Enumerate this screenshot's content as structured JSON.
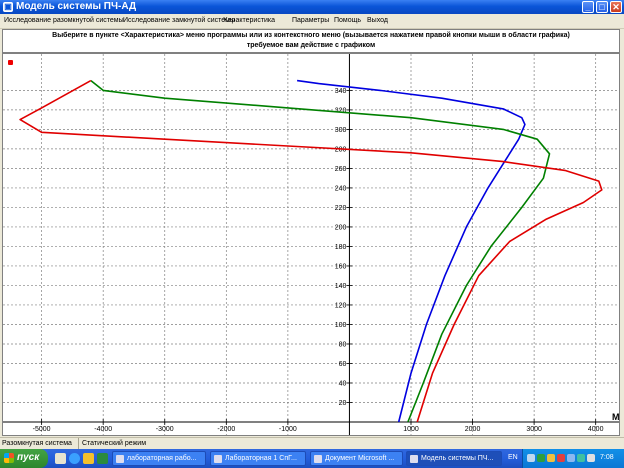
{
  "window": {
    "title": "Модель системы ПЧ-АД",
    "min_glyph": "_",
    "max_glyph": "□",
    "close_glyph": "✕"
  },
  "menu": [
    "Исследование разомкнутой системы",
    "Исследование замкнутой системы",
    "Характеристика",
    "Параметры",
    "Помощь",
    "Выход"
  ],
  "banner": {
    "line1": "Выберите в пункте <Характеристика> меню программы или из контекстного меню (вызывается нажатием правой кнопки мыши в области графика)",
    "line2": "требуемое вам действие с графиком"
  },
  "chart_data": {
    "type": "line",
    "x_axis_label": "M",
    "x_ticks": [
      -5000,
      -4000,
      -3000,
      -2000,
      -1000,
      1000,
      2000,
      3000,
      4000
    ],
    "y_ticks": [
      20,
      40,
      60,
      80,
      100,
      120,
      140,
      160,
      180,
      200,
      220,
      240,
      260,
      280,
      300,
      320,
      340
    ],
    "xlim": [
      -5400,
      4200
    ],
    "ylim": [
      0,
      365
    ],
    "grid": true,
    "series": [
      {
        "color": "#0000e0",
        "points": [
          [
            -850,
            350
          ],
          [
            -500,
            347
          ],
          [
            500,
            340
          ],
          [
            1500,
            332
          ],
          [
            2500,
            321
          ],
          [
            2800,
            312
          ],
          [
            2850,
            305
          ],
          [
            2750,
            290
          ],
          [
            2550,
            270
          ],
          [
            2250,
            240
          ],
          [
            1900,
            200
          ],
          [
            1550,
            150
          ],
          [
            1250,
            100
          ],
          [
            1000,
            50
          ],
          [
            800,
            0
          ]
        ]
      },
      {
        "color": "#008000",
        "points": [
          [
            -4200,
            350
          ],
          [
            -4000,
            340
          ],
          [
            -3000,
            332
          ],
          [
            -1000,
            322
          ],
          [
            1000,
            312
          ],
          [
            2500,
            300
          ],
          [
            3050,
            290
          ],
          [
            3250,
            275
          ],
          [
            3150,
            250
          ],
          [
            2800,
            220
          ],
          [
            2300,
            180
          ],
          [
            1900,
            140
          ],
          [
            1500,
            90
          ],
          [
            1200,
            40
          ],
          [
            950,
            0
          ]
        ]
      },
      {
        "color": "#e00000",
        "points": [
          [
            -4200,
            350
          ],
          [
            -5000,
            322
          ],
          [
            -5350,
            310
          ],
          [
            -5000,
            297
          ],
          [
            -3000,
            290
          ],
          [
            -1000,
            283
          ],
          [
            1000,
            276
          ],
          [
            2500,
            267
          ],
          [
            3500,
            258
          ],
          [
            4050,
            247
          ],
          [
            4100,
            238
          ],
          [
            3800,
            225
          ],
          [
            3200,
            208
          ],
          [
            2600,
            185
          ],
          [
            2100,
            150
          ],
          [
            1700,
            100
          ],
          [
            1350,
            50
          ],
          [
            1100,
            0
          ]
        ]
      }
    ]
  },
  "status": {
    "mode1": "Разомкнутая система",
    "mode2": "Статический режим"
  },
  "taskbar": {
    "start": "пуск",
    "tasks": [
      "лабораторная рабо...",
      "Лабораторная 1 СпГ...",
      "Документ Microsoft ...",
      "Модель системы ПЧ..."
    ],
    "lang": "EN",
    "clock": "7:08"
  }
}
